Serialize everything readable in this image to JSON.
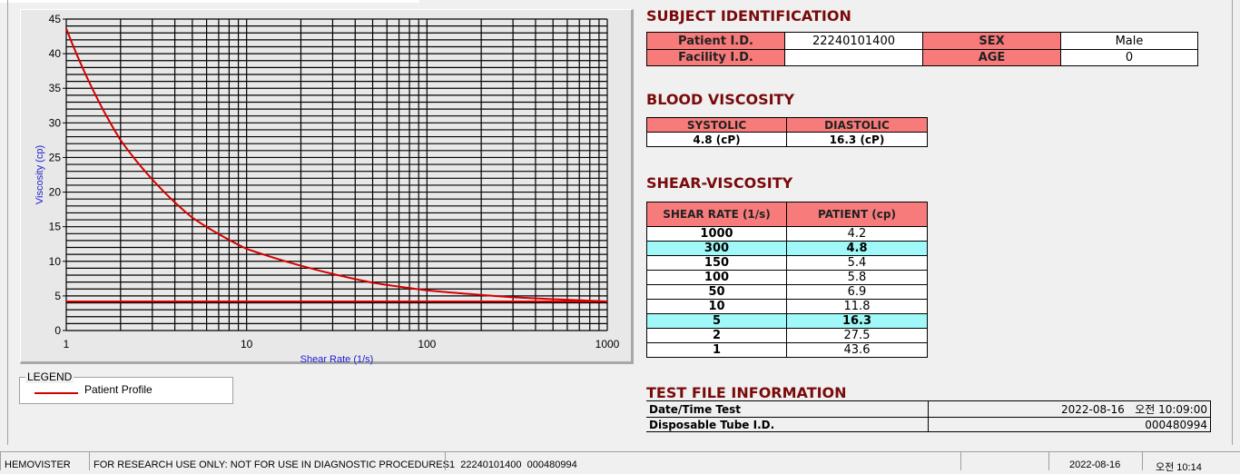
{
  "chart_data": {
    "type": "line",
    "xlabel": "Shear Rate (1/s)",
    "ylabel": "Viscosity (cp)",
    "xscale": "log",
    "xlim": [
      1,
      1000
    ],
    "ylim": [
      0,
      45
    ],
    "xticks": [
      "1",
      "10",
      "100",
      "1000"
    ],
    "yticks": [
      "0",
      "5",
      "10",
      "15",
      "20",
      "25",
      "30",
      "35",
      "40",
      "45"
    ],
    "grid": true,
    "series": [
      {
        "name": "Patient Profile",
        "x": [
          1,
          2,
          5,
          10,
          50,
          100,
          150,
          300,
          1000
        ],
        "y": [
          43.6,
          27.5,
          16.3,
          11.8,
          6.9,
          5.8,
          5.4,
          4.8,
          4.2
        ],
        "color": "#d40000"
      },
      {
        "x": [
          1,
          1000
        ],
        "y": [
          4.2,
          4.2
        ],
        "color": "#d40000"
      }
    ],
    "legend": {
      "title": "LEGEND",
      "placement": "bottom-left"
    }
  },
  "subject": {
    "title": "SUBJECT IDENTIFICATION",
    "patient_id_label": "Patient I.D.",
    "patient_id": "22240101400",
    "sex_label": "SEX",
    "sex": "Male",
    "facility_label": "Facility I.D.",
    "facility": "",
    "age_label": "AGE",
    "age": "0"
  },
  "blood": {
    "title": "BLOOD VISCOSITY",
    "systolic_label": "SYSTOLIC",
    "diastolic_label": "DIASTOLIC",
    "systolic": "4.8 (cP)",
    "diastolic": "16.3 (cP)"
  },
  "shear": {
    "title": "SHEAR-VISCOSITY",
    "col1": "SHEAR RATE (1/s)",
    "col2": "PATIENT (cp)",
    "rows": [
      [
        "1000",
        "4.2"
      ],
      [
        "300",
        "4.8"
      ],
      [
        "150",
        "5.4"
      ],
      [
        "100",
        "5.8"
      ],
      [
        "50",
        "6.9"
      ],
      [
        "10",
        "11.8"
      ],
      [
        "5",
        "16.3"
      ],
      [
        "2",
        "27.5"
      ],
      [
        "1",
        "43.6"
      ]
    ],
    "highlight_color": "#a0f8f8"
  },
  "testfile": {
    "title": "TEST FILE INFORMATION",
    "datetime_label": "Date/Time Test",
    "datetime": "2022-08-16   오전 10:09:00",
    "tube_label": "Disposable Tube I.D.",
    "tube": "000480994"
  },
  "status": {
    "app": "HEMOVISTER",
    "notice": "FOR RESEARCH USE ONLY: NOT FOR USE IN DIAGNOSTIC PROCEDURES",
    "record": "1  22240101400  000480994",
    "empty": "",
    "date": "2022-08-16",
    "time": "오전 10:14"
  },
  "colors": {
    "header": "#f77b7b",
    "title": "#7a0a0a",
    "curve": "#d40000"
  }
}
